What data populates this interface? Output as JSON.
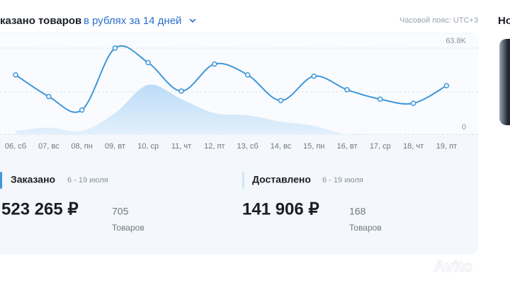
{
  "header": {
    "title": "казано товаров",
    "filter": "в рублях за 14 дней",
    "timezone": "Часовой пояс: UTC+3",
    "side_title": "Но"
  },
  "chart_data": {
    "type": "line",
    "categories": [
      "06, сб",
      "07, вс",
      "08, пн",
      "09, вт",
      "10, ср",
      "11, чт",
      "12, пт",
      "13, сб",
      "14, вс",
      "15, пн",
      "16, вт",
      "17, ср",
      "18, чт",
      "19, пт"
    ],
    "series": [
      {
        "color": "#3f97d9",
        "values": [
          44000,
          28000,
          18000,
          63800,
          53000,
          32000,
          52000,
          44000,
          25000,
          43000,
          33000,
          26000,
          23000,
          36000
        ]
      },
      {
        "color": "#cfe6fa",
        "values": [
          2600,
          5000,
          2600,
          15700,
          36600,
          26100,
          15700,
          14100,
          9400,
          6300,
          0,
          0,
          0,
          0
        ]
      }
    ],
    "ylim": [
      0,
      63800
    ],
    "yticks": [
      0,
      {
        "value": 63800,
        "label": "63.8K"
      }
    ],
    "grid": true
  },
  "stats": [
    {
      "title": "Заказано",
      "period": "6 - 19 июля",
      "amount": "523 265 ₽",
      "count": "705",
      "count_label": "Товаров"
    },
    {
      "title": "Доставлено",
      "period": "6 - 19 июля",
      "amount": "141 906 ₽",
      "count": "168",
      "count_label": "Товаров"
    }
  ],
  "watermark": "Avito"
}
